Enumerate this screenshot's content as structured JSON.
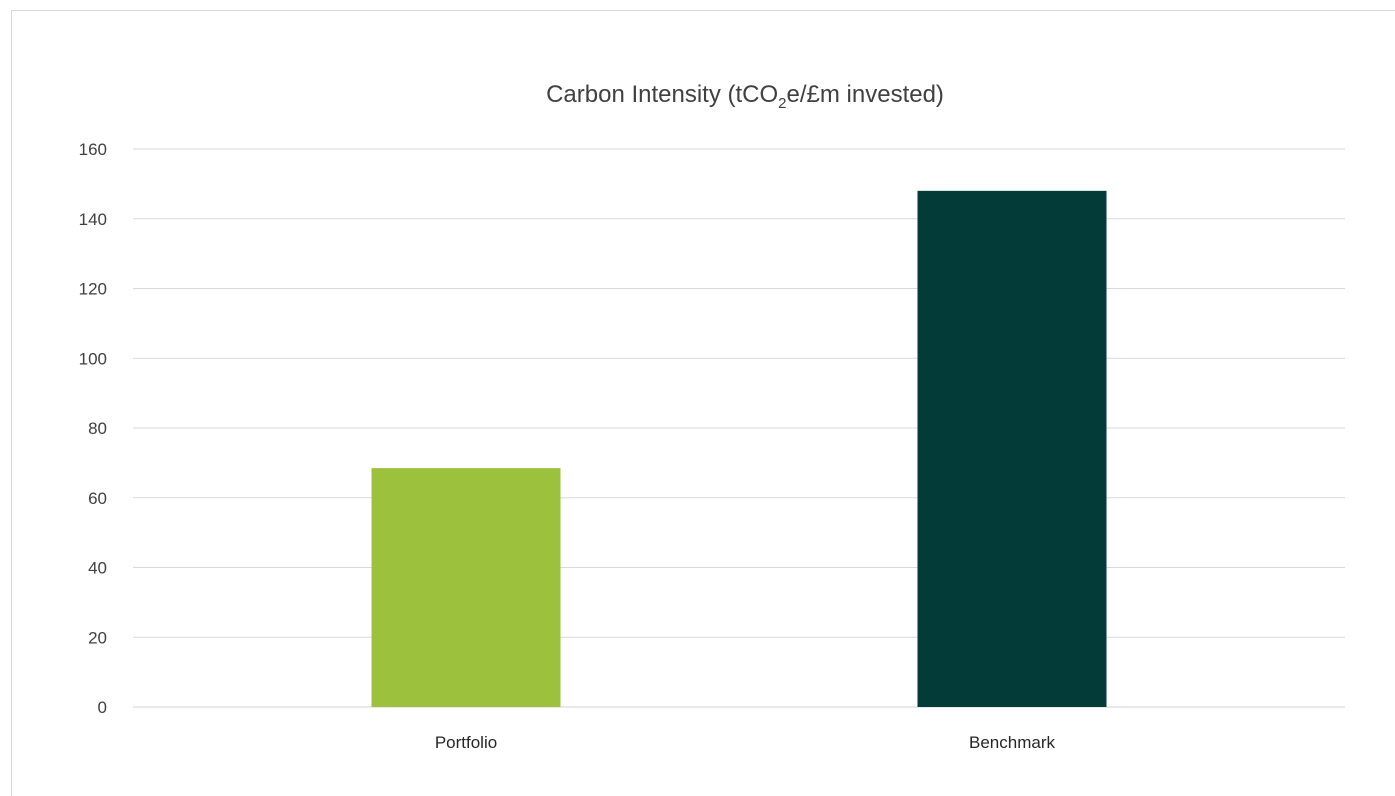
{
  "chart_data": {
    "type": "bar",
    "title": "Carbon Intensity (tCO₂e/£m invested)",
    "title_parts": {
      "before_sub": "Carbon Intensity (tCO",
      "subscript": "2",
      "after_sub": "e/£m invested)"
    },
    "xlabel": "",
    "ylabel": "",
    "categories": [
      "Portfolio",
      "Benchmark"
    ],
    "values": [
      68.5,
      148
    ],
    "colors": [
      "#9cc13d",
      "#023b38"
    ],
    "ylim": [
      0,
      160
    ],
    "yticks": [
      0,
      20,
      40,
      60,
      80,
      100,
      120,
      140,
      160
    ],
    "grid": true,
    "legend": "none"
  }
}
